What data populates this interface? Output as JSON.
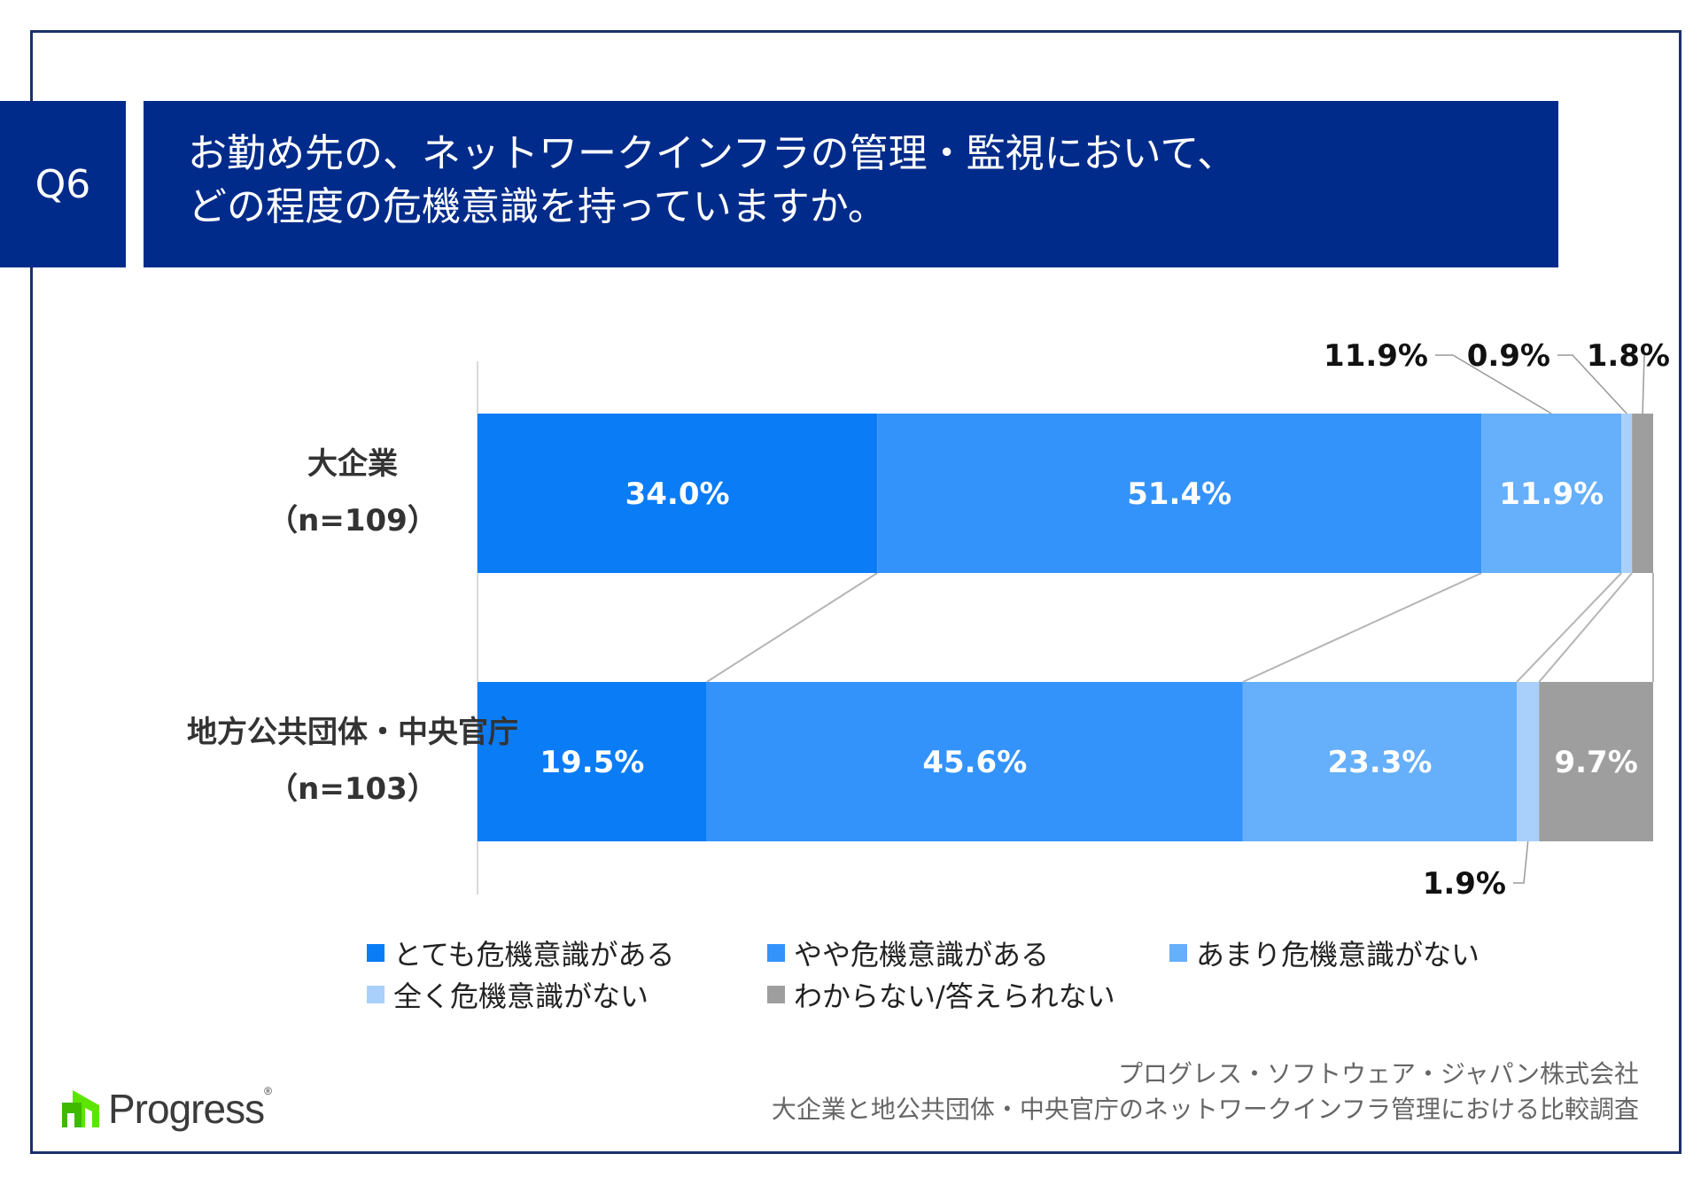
{
  "question": {
    "label": "Q6",
    "line1": "お勤め先の、ネットワークインフラの管理・監視において、",
    "line2": "どの程度の危機意識を持っていますか。"
  },
  "chart_data": {
    "type": "bar",
    "orientation": "horizontal",
    "stacked": true,
    "percent": true,
    "categories": [
      {
        "name": "大企業",
        "n": "（n=109）"
      },
      {
        "name": "地方公共団体・中央官庁",
        "n": "（n=103）"
      }
    ],
    "series": [
      {
        "name": "とても危機意識がある",
        "color": "#0a7cf6",
        "values": [
          34.0,
          19.5
        ]
      },
      {
        "name": "やや危機意識がある",
        "color": "#3493fb",
        "values": [
          51.4,
          45.6
        ]
      },
      {
        "name": "あまり危機意識がない",
        "color": "#66affa",
        "values": [
          11.9,
          23.3
        ]
      },
      {
        "name": "全く危機意識がない",
        "color": "#a9d0fb",
        "values": [
          0.9,
          1.9
        ]
      },
      {
        "name": "わからない/答えられない",
        "color": "#9e9e9e",
        "values": [
          1.8,
          9.7
        ]
      }
    ],
    "labels": [
      [
        "34.0%",
        "51.4%",
        "11.9%",
        "0.9%",
        "1.8%"
      ],
      [
        "19.5%",
        "45.6%",
        "23.3%",
        "1.9%",
        "9.7%"
      ]
    ],
    "xlim": [
      0,
      100
    ],
    "legend_position": "bottom"
  },
  "footer": {
    "company": "プログレス・ソフトウェア・ジャパン株式会社",
    "survey": "大企業と地公共団体・中央官庁のネットワークインフラ管理における比較調査"
  },
  "logo": {
    "text": "Progress",
    "mark": "®",
    "color": "#5ce500"
  }
}
